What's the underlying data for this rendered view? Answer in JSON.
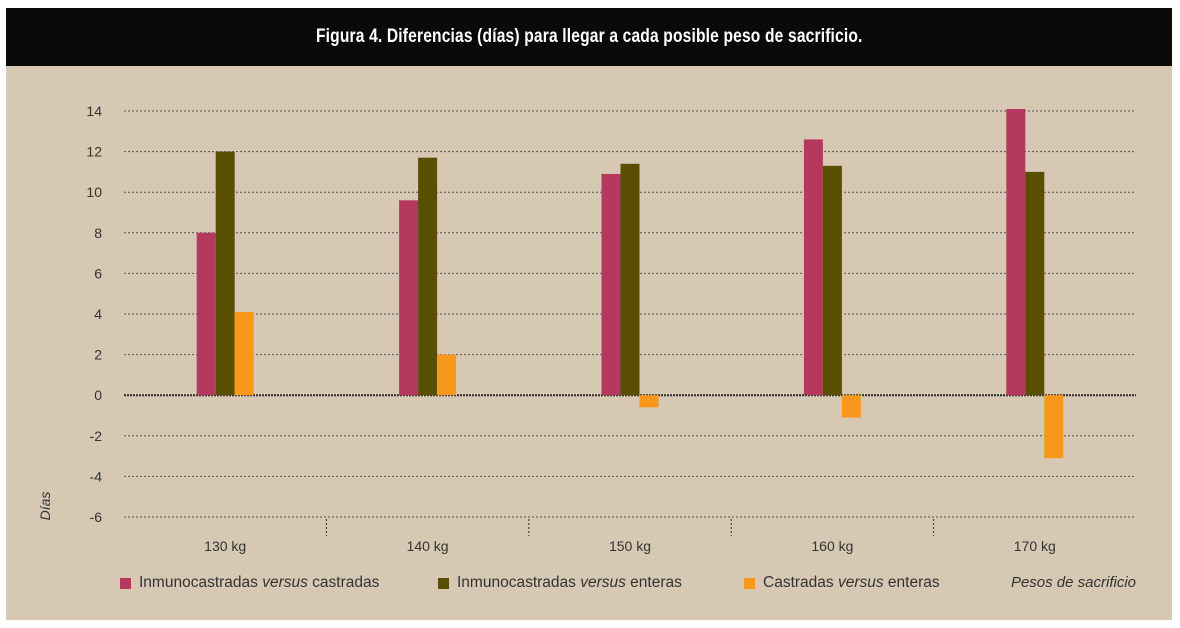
{
  "title": "Figura 4. Diferencias (días) para llegar a cada posible peso de sacrificio.",
  "chart_data": {
    "type": "bar",
    "title": "Figura 4. Diferencias (días) para llegar a cada posible peso de sacrificio.",
    "xlabel": "Pesos de sacrificio",
    "ylabel": "Días",
    "ylim": [
      -6,
      14
    ],
    "yticks": [
      14,
      12,
      10,
      8,
      6,
      4,
      2,
      0,
      -2,
      -4,
      -6
    ],
    "grid": true,
    "legend_position": "bottom",
    "categories": [
      "130 kg",
      "140 kg",
      "150 kg",
      "160 kg",
      "170 kg"
    ],
    "series": [
      {
        "name": "Inmunocastradas versus castradas",
        "name_parts": [
          "Inmunocastradas ",
          "versus",
          " castradas"
        ],
        "color": "#b5385f",
        "values": [
          8.0,
          9.6,
          10.9,
          12.6,
          14.1
        ]
      },
      {
        "name": "Inmunocastradas versus enteras",
        "name_parts": [
          "Inmunocastradas ",
          "versus",
          " enteras"
        ],
        "color": "#5a4f00",
        "values": [
          12.0,
          11.7,
          11.4,
          11.3,
          11.0
        ]
      },
      {
        "name": "Castradas versus enteras",
        "name_parts": [
          "Castradas ",
          "versus",
          " enteras"
        ],
        "color": "#f7981d",
        "values": [
          4.1,
          2.0,
          -0.6,
          -1.1,
          -3.1
        ]
      }
    ]
  }
}
